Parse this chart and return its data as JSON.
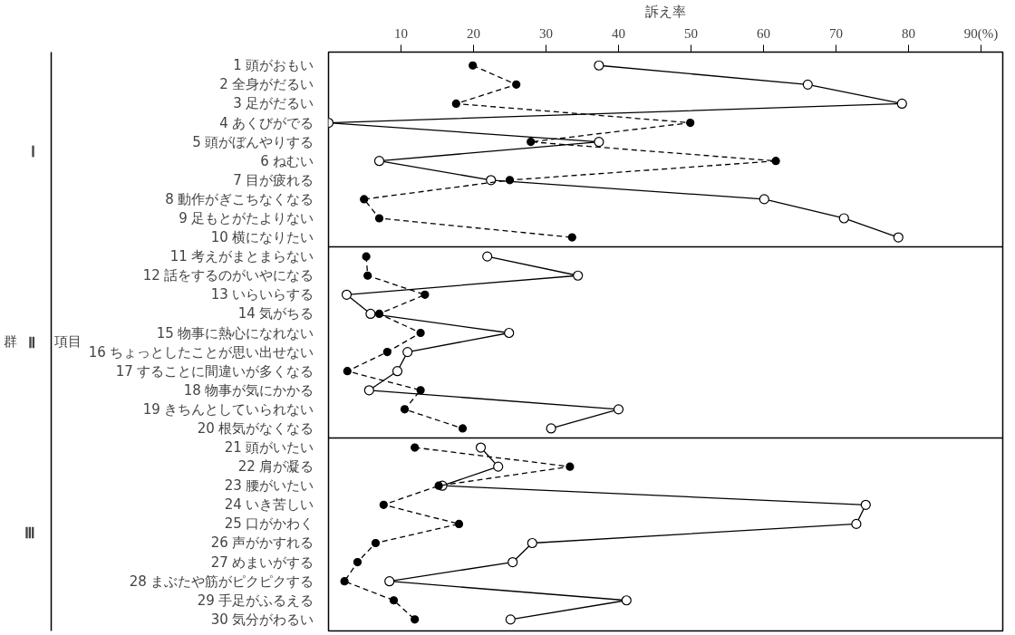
{
  "chart_data": {
    "type": "line",
    "orientation": "horizontal",
    "xlabel": "訴え率",
    "ylabel": "項目",
    "annotations": [
      "群",
      "Ⅰ",
      "Ⅱ",
      "Ⅲ"
    ],
    "categories": [
      "1 頭がおもい",
      "2 全身がだるい",
      "3 足がだるい",
      "4 あくびがでる",
      "5 頭がぼんやりする",
      "6 ねむい",
      "7 目が疲れる",
      "8 動作がぎこちなくなる",
      "9 足もとがたよりない",
      "10 横になりたい",
      "11 考えがまとまらない",
      "12 話をするのがいやになる",
      "13 いらいらする",
      "14 気がちる",
      "15 物事に熱心になれない",
      "16 ちょっとしたことが思い出せない",
      "17 することに間違いが多くなる",
      "18 物事が気にかかる",
      "19 きちんとしていられない",
      "20 根気がなくなる",
      "21 頭がいたい",
      "22 肩が凝る",
      "23 腰がいたい",
      "24 いき苦しい",
      "25 口がかわく",
      "26 声がかすれる",
      "27 めまいがする",
      "28 まぶたや筋がピクピクする",
      "29 手足がふるえる",
      "30 気分がわるい"
    ],
    "series": [
      {
        "color": "#000000",
        "line_style": "solid",
        "values": [
          37.3,
          66.1,
          79.1,
          0,
          37.3,
          7.0,
          22.4,
          60.1,
          71.1,
          78.6,
          null,
          null,
          null,
          null,
          null,
          null,
          null,
          null,
          null,
          null,
          null,
          null,
          null,
          null,
          null,
          null,
          null,
          null,
          null,
          null
        ]
      },
      {
        "color": "#000000",
        "line_style": "dashed",
        "values": [
          19.9,
          25.9,
          17.6,
          49.9,
          27.9,
          61.7,
          25.0,
          4.9,
          7.0,
          33.6,
          null,
          null,
          null,
          null,
          null,
          null,
          null,
          null,
          null,
          null,
          null,
          null,
          null,
          null,
          null,
          null,
          null,
          null,
          null,
          null
        ]
      },
      {
        "color": "#000000",
        "line_style": "solid",
        "values": [
          null,
          null,
          null,
          null,
          null,
          null,
          null,
          null,
          null,
          null,
          21.9,
          34.4,
          2.5,
          5.8,
          24.9,
          10.9,
          9.5,
          5.6,
          40.0,
          30.7,
          null,
          null,
          null,
          null,
          null,
          null,
          null,
          null,
          null,
          null
        ]
      },
      {
        "color": "#000000",
        "line_style": "dashed",
        "values": [
          null,
          null,
          null,
          null,
          null,
          null,
          null,
          null,
          null,
          null,
          5.2,
          5.4,
          13.3,
          7.0,
          12.7,
          8.1,
          2.6,
          12.7,
          10.5,
          18.5,
          null,
          null,
          null,
          null,
          null,
          null,
          null,
          null,
          null,
          null
        ]
      },
      {
        "color": "#000000",
        "line_style": "solid",
        "values": [
          null,
          null,
          null,
          null,
          null,
          null,
          null,
          null,
          null,
          null,
          null,
          null,
          null,
          null,
          null,
          null,
          null,
          null,
          null,
          null,
          21.0,
          23.4,
          15.7,
          74.1,
          72.8,
          28.1,
          25.4,
          8.4,
          41.1,
          25.1
        ]
      },
      {
        "color": "#000000",
        "line_style": "dashed",
        "values": [
          null,
          null,
          null,
          null,
          null,
          null,
          null,
          null,
          null,
          null,
          null,
          null,
          null,
          null,
          null,
          null,
          null,
          null,
          null,
          null,
          11.9,
          33.3,
          15.2,
          7.6,
          18.0,
          6.5,
          4.0,
          2.2,
          9.0,
          11.9
        ]
      }
    ],
    "marker": "circle",
    "grid": false,
    "xlim": [
      0,
      93
    ],
    "xticks": [
      10,
      20,
      30,
      40,
      50,
      60,
      70,
      80,
      {
        "value": 90,
        "label": "90(%)"
      }
    ]
  }
}
